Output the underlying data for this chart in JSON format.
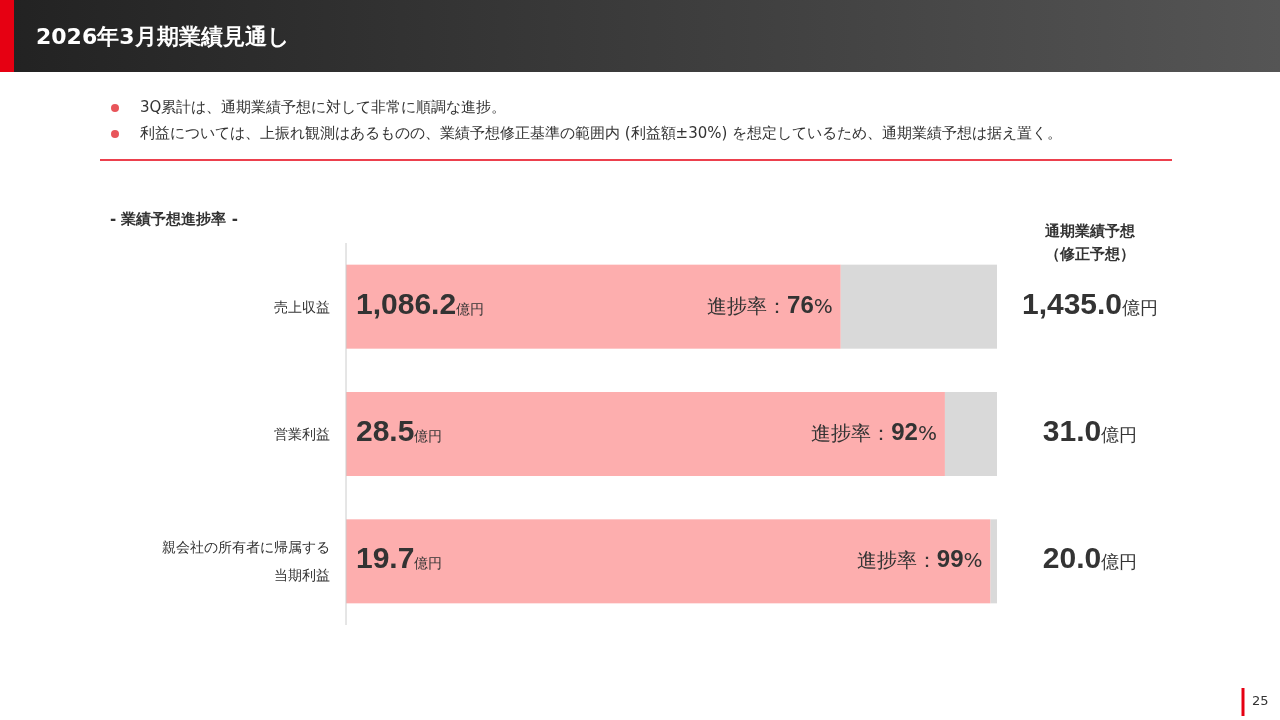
{
  "chart_data": {
    "type": "bar",
    "orientation": "horizontal",
    "stacked": true,
    "title": "2026年3月期業績見通し",
    "subtitle": "- 業績予想進捗率 -",
    "categories": [
      "売上収益",
      "営業利益",
      "親会社の所有者に帰属する当期利益"
    ],
    "series": [
      {
        "color": "#fdaeae",
        "values": [
          76,
          92,
          99
        ],
        "value_labels": [
          "進捗率：76%",
          "進捗率：92%",
          "進捗率：99%"
        ]
      },
      {
        "color": "#d9d9d9",
        "values": [
          24,
          8,
          1
        ]
      }
    ],
    "xlim": [
      0,
      100
    ],
    "annotations": [
      "3Q累計は、通期業績予想に対して非常に順調な進捗。",
      "利益については、上振れ観測はあるものの、業績予想修正基準の範囲内 (利益額±30%) を想定しているため、通期業績予想は据え置く。",
      "通期業績予想（修正予想）",
      "1,086.2億円",
      "28.5億円",
      "19.7億円",
      "1,435.0億円",
      "31.0億円",
      "20.0億円",
      "25"
    ]
  }
}
